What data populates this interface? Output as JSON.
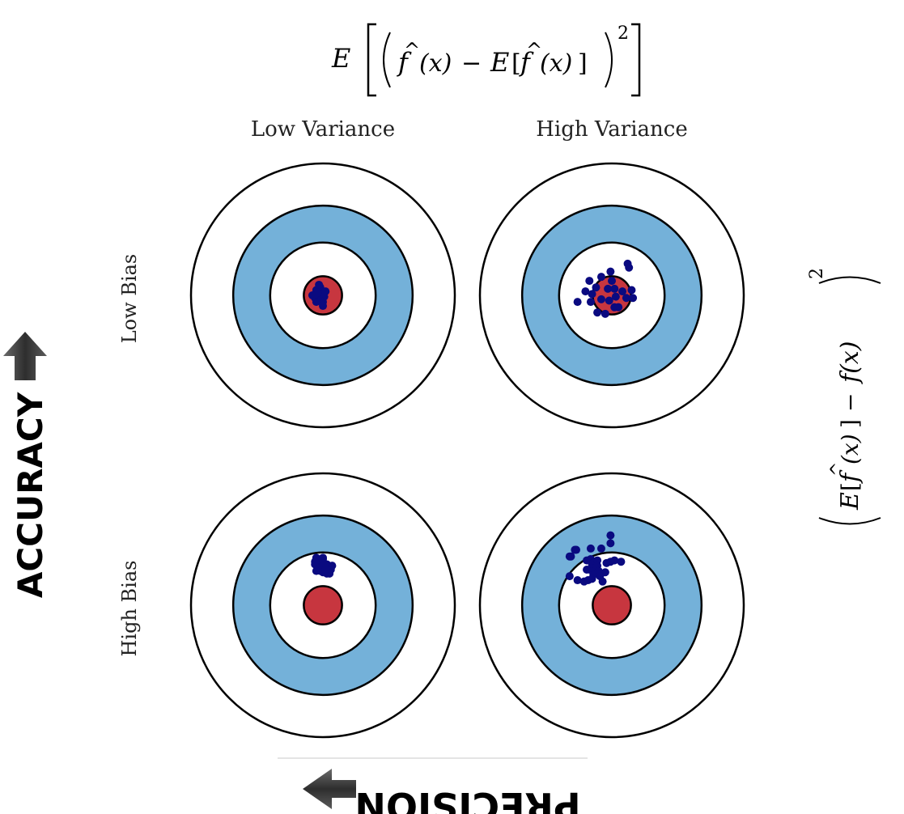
{
  "variance_formula": {
    "expectation": "E",
    "f_hat": "f",
    "hat": "^",
    "arg": "(x)",
    "minus": "−",
    "exponent": "2"
  },
  "bias_formula": {
    "expectation": "E",
    "f_hat": "f",
    "hat": "^",
    "arg": "(x)",
    "minus": "−",
    "f": "f(x)",
    "exponent": "2"
  },
  "columns": [
    "Low Variance",
    "High Variance"
  ],
  "rows": [
    "Low Bias",
    "High Bias"
  ],
  "axes": {
    "vertical": "ACCURACY",
    "horizontal": "PRECISION"
  },
  "colors": {
    "ring_white": "#ffffff",
    "ring_blue": "#74b1d9",
    "bullseye": "#c7363f",
    "outline": "#000000",
    "points": "#0a0a80",
    "arrow": "#3a3a3a"
  },
  "targets": [
    {
      "id": "low-bias-low-variance",
      "points": [
        [
          -0.05,
          -0.04
        ],
        [
          -0.02,
          -0.06
        ],
        [
          0.0,
          -0.02
        ],
        [
          -0.04,
          0.0
        ],
        [
          -0.03,
          0.03
        ],
        [
          0.0,
          0.05
        ],
        [
          -0.01,
          -0.01
        ],
        [
          -0.06,
          0.02
        ],
        [
          0.02,
          -0.03
        ],
        [
          -0.04,
          -0.02
        ],
        [
          0.01,
          0.01
        ],
        [
          -0.02,
          0.04
        ],
        [
          -0.05,
          0.05
        ],
        [
          0.0,
          0.08
        ],
        [
          -0.08,
          0.0
        ],
        [
          -0.03,
          -0.08
        ]
      ]
    },
    {
      "id": "low-bias-high-variance",
      "points": [
        [
          -0.08,
          -0.14
        ],
        [
          -0.01,
          -0.18
        ],
        [
          -0.17,
          -0.11
        ],
        [
          -0.12,
          -0.06
        ],
        [
          -0.03,
          -0.05
        ],
        [
          0.0,
          -0.11
        ],
        [
          0.02,
          -0.05
        ],
        [
          0.12,
          -0.24
        ],
        [
          0.13,
          -0.21
        ],
        [
          -0.15,
          -0.01
        ],
        [
          0.03,
          0.01
        ],
        [
          0.08,
          -0.03
        ],
        [
          0.11,
          0.02
        ],
        [
          0.15,
          -0.04
        ],
        [
          0.16,
          0.02
        ],
        [
          -0.2,
          -0.03
        ],
        [
          -0.26,
          0.05
        ],
        [
          -0.16,
          0.05
        ],
        [
          -0.08,
          0.03
        ],
        [
          -0.02,
          0.04
        ],
        [
          0.05,
          0.09
        ],
        [
          -0.11,
          0.13
        ],
        [
          -0.05,
          0.14
        ],
        [
          0.02,
          0.09
        ]
      ]
    },
    {
      "id": "high-bias-low-variance",
      "points": [
        [
          -0.05,
          -0.36
        ],
        [
          -0.03,
          -0.33
        ],
        [
          0.0,
          -0.36
        ],
        [
          -0.06,
          -0.31
        ],
        [
          -0.03,
          -0.28
        ],
        [
          0.0,
          -0.3
        ],
        [
          0.03,
          -0.31
        ],
        [
          0.06,
          -0.27
        ],
        [
          0.0,
          -0.25
        ],
        [
          -0.02,
          -0.26
        ],
        [
          -0.05,
          -0.26
        ],
        [
          0.03,
          -0.24
        ],
        [
          0.0,
          -0.35
        ],
        [
          -0.06,
          -0.33
        ],
        [
          0.07,
          -0.3
        ],
        [
          0.03,
          -0.27
        ],
        [
          0.05,
          -0.24
        ],
        [
          0.02,
          -0.27
        ]
      ]
    },
    {
      "id": "high-bias-high-variance",
      "points": [
        [
          -0.01,
          -0.53
        ],
        [
          -0.01,
          -0.47
        ],
        [
          -0.08,
          -0.43
        ],
        [
          -0.16,
          -0.43
        ],
        [
          -0.31,
          -0.37
        ],
        [
          -0.27,
          -0.42
        ],
        [
          -0.28,
          -0.42
        ],
        [
          -0.32,
          -0.37
        ],
        [
          -0.19,
          -0.34
        ],
        [
          -0.16,
          -0.35
        ],
        [
          -0.15,
          -0.31
        ],
        [
          -0.14,
          -0.32
        ],
        [
          -0.11,
          -0.34
        ],
        [
          -0.11,
          -0.3
        ],
        [
          -0.04,
          -0.32
        ],
        [
          -0.01,
          -0.33
        ],
        [
          0.02,
          -0.34
        ],
        [
          0.07,
          -0.33
        ],
        [
          -0.17,
          -0.27
        ],
        [
          -0.15,
          -0.28
        ],
        [
          -0.12,
          -0.27
        ],
        [
          -0.1,
          -0.26
        ],
        [
          -0.05,
          -0.25
        ],
        [
          -0.19,
          -0.27
        ],
        [
          -0.14,
          -0.23
        ],
        [
          -0.09,
          -0.22
        ],
        [
          -0.18,
          -0.19
        ],
        [
          -0.15,
          -0.2
        ],
        [
          -0.26,
          -0.19
        ],
        [
          -0.32,
          -0.22
        ],
        [
          -0.21,
          -0.18
        ],
        [
          -0.07,
          -0.18
        ]
      ]
    }
  ]
}
